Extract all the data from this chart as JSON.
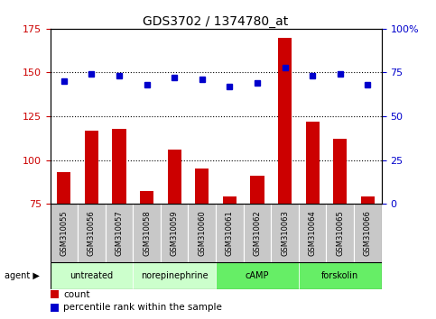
{
  "title": "GDS3702 / 1374780_at",
  "samples": [
    "GSM310055",
    "GSM310056",
    "GSM310057",
    "GSM310058",
    "GSM310059",
    "GSM310060",
    "GSM310061",
    "GSM310062",
    "GSM310063",
    "GSM310064",
    "GSM310065",
    "GSM310066"
  ],
  "counts": [
    93,
    117,
    118,
    82,
    106,
    95,
    79,
    91,
    170,
    122,
    112,
    79
  ],
  "percentiles": [
    70,
    74,
    73,
    68,
    72,
    71,
    67,
    69,
    78,
    73,
    74,
    68
  ],
  "agents": [
    {
      "label": "untreated",
      "start": 0,
      "end": 3,
      "color": "#ccffcc"
    },
    {
      "label": "norepinephrine",
      "start": 3,
      "end": 6,
      "color": "#ccffcc"
    },
    {
      "label": "cAMP",
      "start": 6,
      "end": 9,
      "color": "#66ee66"
    },
    {
      "label": "forskolin",
      "start": 9,
      "end": 12,
      "color": "#66ee66"
    }
  ],
  "ylim_left": [
    75,
    175
  ],
  "ylim_right": [
    0,
    100
  ],
  "yticks_left": [
    75,
    100,
    125,
    150,
    175
  ],
  "yticks_right": [
    0,
    25,
    50,
    75,
    100
  ],
  "ytick_labels_right": [
    "0",
    "25",
    "50",
    "75",
    "100%"
  ],
  "bar_color": "#cc0000",
  "dot_color": "#0000cc",
  "bg_color": "#ffffff",
  "sample_label_bg": "#c8c8c8",
  "grid_lines": [
    100,
    125,
    150
  ]
}
